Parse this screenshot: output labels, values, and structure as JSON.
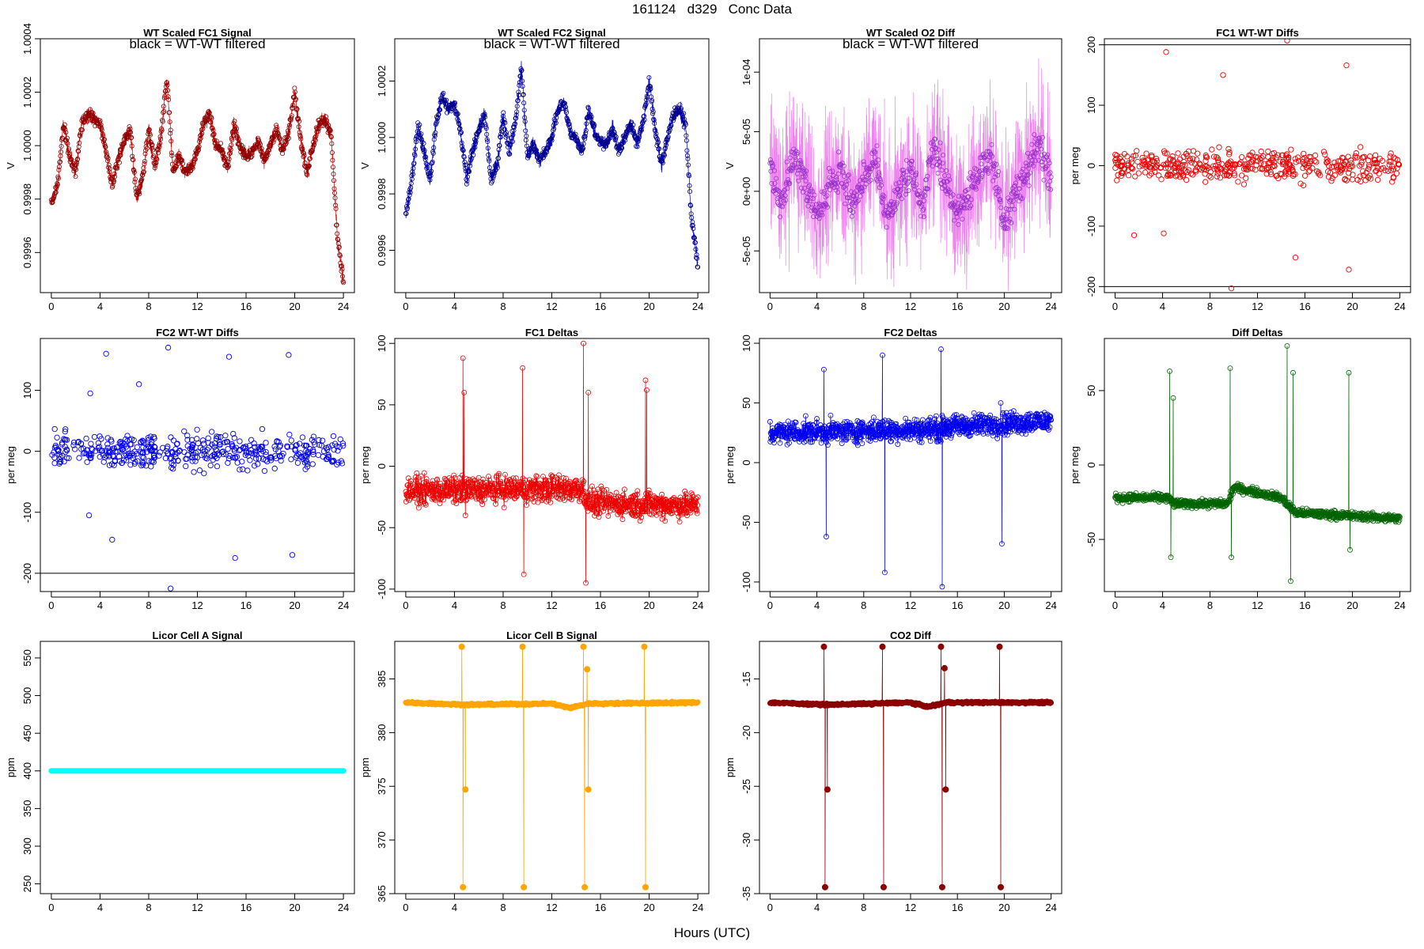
{
  "page": {
    "title": "161124   d329   Conc Data",
    "x_label": "Hours (UTC)"
  },
  "chart_data": [
    {
      "id": "fc1_signal",
      "type": "line",
      "title": "WT Scaled FC1 Signal",
      "annotation": "black = WT-WT filtered",
      "ylabel": "V",
      "xlim": [
        0,
        24
      ],
      "ylim": [
        0.99945,
        1.0004
      ],
      "xticks": [
        0,
        4,
        8,
        12,
        16,
        20,
        24
      ],
      "yticks": [
        0.9996,
        0.9998,
        1.0,
        1.0002,
        1.0004
      ],
      "ytick_labels": [
        "0.9996",
        "0.9998",
        "1.0000",
        "1.0002",
        "1.0004"
      ],
      "color": "#dd0000",
      "marker_color": "#8b0000",
      "series_points": [
        [
          0,
          0.99978
        ],
        [
          0.5,
          0.99985
        ],
        [
          1,
          1.00008
        ],
        [
          1.5,
          0.99996
        ],
        [
          2,
          0.9999
        ],
        [
          2.5,
          1.00008
        ],
        [
          3,
          1.00012
        ],
        [
          3.5,
          1.0001
        ],
        [
          4,
          1.00008
        ],
        [
          4.5,
          0.99998
        ],
        [
          5,
          0.99985
        ],
        [
          5.5,
          0.99995
        ],
        [
          6,
          1.00002
        ],
        [
          6.5,
          1.00006
        ],
        [
          7,
          0.9998
        ],
        [
          7.5,
          0.99988
        ],
        [
          8,
          1.00006
        ],
        [
          8.5,
          0.99992
        ],
        [
          9,
          1.00003
        ],
        [
          9.5,
          1.00025
        ],
        [
          10,
          0.9999
        ],
        [
          10.5,
          0.99996
        ],
        [
          11,
          0.9999
        ],
        [
          11.5,
          0.99992
        ],
        [
          12,
          0.99998
        ],
        [
          12.5,
          1.00008
        ],
        [
          13,
          1.00012
        ],
        [
          13.5,
          1.0
        ],
        [
          14,
          0.99998
        ],
        [
          14.5,
          0.99992
        ],
        [
          15,
          1.00008
        ],
        [
          15.5,
          1.0
        ],
        [
          16,
          0.99996
        ],
        [
          16.5,
          0.99998
        ],
        [
          17,
          1.00002
        ],
        [
          17.5,
          0.99994
        ],
        [
          18,
          1.0
        ],
        [
          18.5,
          1.00006
        ],
        [
          19,
          0.99998
        ],
        [
          19.5,
          1.00005
        ],
        [
          20,
          1.0002
        ],
        [
          20.5,
          1.00002
        ],
        [
          21,
          0.9999
        ],
        [
          21.5,
          1.0
        ],
        [
          22,
          1.00008
        ],
        [
          22.5,
          1.0001
        ],
        [
          23,
          1.00004
        ],
        [
          23.5,
          0.99965
        ],
        [
          24,
          0.9995
        ]
      ]
    },
    {
      "id": "fc2_signal",
      "type": "line",
      "title": "WT Scaled FC2 Signal",
      "annotation": "black = WT-WT filtered",
      "ylabel": "V",
      "xlim": [
        0,
        24
      ],
      "ylim": [
        0.99945,
        1.00035
      ],
      "xticks": [
        0,
        4,
        8,
        12,
        16,
        20,
        24
      ],
      "yticks": [
        0.9996,
        0.9998,
        1.0,
        1.0002
      ],
      "ytick_labels": [
        "0.9996",
        "0.9998",
        "1.0000",
        "1.0002"
      ],
      "color": "#0000dd",
      "marker_color": "#00008b",
      "series_points": [
        [
          0,
          0.99972
        ],
        [
          0.5,
          0.99985
        ],
        [
          1,
          1.00005
        ],
        [
          1.5,
          0.99995
        ],
        [
          2,
          0.99985
        ],
        [
          2.5,
          1.00005
        ],
        [
          3,
          1.00015
        ],
        [
          3.5,
          1.0001
        ],
        [
          4,
          1.00012
        ],
        [
          4.5,
          1.00002
        ],
        [
          5,
          0.99985
        ],
        [
          5.5,
          0.99995
        ],
        [
          6,
          1.00003
        ],
        [
          6.5,
          1.00008
        ],
        [
          7,
          0.99985
        ],
        [
          7.5,
          0.9999
        ],
        [
          8,
          1.00008
        ],
        [
          8.5,
          0.99995
        ],
        [
          9,
          1.00005
        ],
        [
          9.5,
          1.00025
        ],
        [
          10,
          0.99993
        ],
        [
          10.5,
          0.99998
        ],
        [
          11,
          0.99992
        ],
        [
          11.5,
          0.99995
        ],
        [
          12,
          1.0
        ],
        [
          12.5,
          1.0001
        ],
        [
          13,
          1.00012
        ],
        [
          13.5,
          1.00002
        ],
        [
          14,
          1.0
        ],
        [
          14.5,
          0.99995
        ],
        [
          15,
          1.0001
        ],
        [
          15.5,
          1.00002
        ],
        [
          16,
          0.99998
        ],
        [
          16.5,
          0.99998
        ],
        [
          17,
          1.00003
        ],
        [
          17.5,
          0.99995
        ],
        [
          18,
          1.0
        ],
        [
          18.5,
          1.00005
        ],
        [
          19,
          0.99998
        ],
        [
          19.5,
          1.00005
        ],
        [
          20,
          1.0002
        ],
        [
          20.5,
          1.00003
        ],
        [
          21,
          0.9999
        ],
        [
          21.5,
          1.0
        ],
        [
          22,
          1.00008
        ],
        [
          22.5,
          1.0001
        ],
        [
          23,
          1.00004
        ],
        [
          23.5,
          0.9997
        ],
        [
          24,
          0.99955
        ]
      ]
    },
    {
      "id": "o2_diff",
      "type": "line",
      "title": "WT Scaled O2 Diff",
      "annotation": "black = WT-WT filtered",
      "ylabel": "V",
      "xlim": [
        0,
        24
      ],
      "ylim": [
        -8.5e-05,
        0.000128
      ],
      "xticks": [
        0,
        4,
        8,
        12,
        16,
        20,
        24
      ],
      "yticks": [
        -5e-05,
        0,
        5e-05,
        0.0001
      ],
      "ytick_labels": [
        "-5e-05",
        "0e+00",
        "5e-05",
        "1e-04"
      ],
      "color": "#ee82ee",
      "marker_color": "#9932cc",
      "series_points": [
        [
          0,
          2e-05
        ],
        [
          1,
          -1e-05
        ],
        [
          2,
          3e-05
        ],
        [
          3,
          1e-05
        ],
        [
          4,
          -2e-05
        ],
        [
          5,
          0.0
        ],
        [
          6,
          2e-05
        ],
        [
          7,
          -1e-05
        ],
        [
          8,
          1e-05
        ],
        [
          9,
          3e-05
        ],
        [
          10,
          -2e-05
        ],
        [
          11,
          0.0
        ],
        [
          12,
          2e-05
        ],
        [
          13,
          -1e-05
        ],
        [
          14,
          4e-05
        ],
        [
          15,
          1e-05
        ],
        [
          16,
          -2e-05
        ],
        [
          17,
          0.0
        ],
        [
          18,
          2e-05
        ],
        [
          19,
          3e-05
        ],
        [
          20,
          -3e-05
        ],
        [
          21,
          0.0
        ],
        [
          22,
          2e-05
        ],
        [
          23,
          4e-05
        ],
        [
          24,
          1e-05
        ]
      ]
    },
    {
      "id": "fc1_wtwt",
      "type": "scatter",
      "title": "FC1 WT-WT Diffs",
      "ylabel": "per meg",
      "xlim": [
        0,
        24
      ],
      "ylim": [
        -210,
        210
      ],
      "xticks": [
        0,
        4,
        8,
        12,
        16,
        20,
        24
      ],
      "yticks": [
        -200,
        -100,
        0,
        100,
        200
      ],
      "ytick_labels": [
        "-200",
        "-100",
        "0",
        "100",
        "200"
      ],
      "hlines": [
        200,
        -200
      ],
      "color": "#ee0000",
      "outliers": [
        [
          4.3,
          188
        ],
        [
          14.5,
          207
        ],
        [
          19.5,
          166
        ],
        [
          9.1,
          150
        ],
        [
          1.6,
          -115
        ],
        [
          4.1,
          -112
        ],
        [
          15.2,
          -152
        ],
        [
          19.7,
          -172
        ],
        [
          9.8,
          -203
        ]
      ]
    },
    {
      "id": "fc2_wtwt",
      "type": "scatter",
      "title": "FC2 WT-WT Diffs",
      "ylabel": "per meg",
      "xlim": [
        0,
        24
      ],
      "ylim": [
        -230,
        185
      ],
      "xticks": [
        0,
        4,
        8,
        12,
        16,
        20,
        24
      ],
      "yticks": [
        -200,
        -100,
        0,
        100
      ],
      "ytick_labels": [
        "-200",
        "-100",
        "0",
        "100"
      ],
      "hlines": [
        -200
      ],
      "color": "#0000ee",
      "outliers": [
        [
          4.5,
          160
        ],
        [
          9.6,
          170
        ],
        [
          14.6,
          155
        ],
        [
          19.5,
          158
        ],
        [
          3.2,
          95
        ],
        [
          7.2,
          110
        ],
        [
          3.1,
          -105
        ],
        [
          5.0,
          -145
        ],
        [
          15.1,
          -175
        ],
        [
          19.8,
          -170
        ],
        [
          9.8,
          -225
        ]
      ]
    },
    {
      "id": "fc1_deltas",
      "type": "line",
      "title": "FC1 Deltas",
      "ylabel": "per meg",
      "xlim": [
        0,
        24
      ],
      "ylim": [
        -102,
        104
      ],
      "xticks": [
        0,
        4,
        8,
        12,
        16,
        20,
        24
      ],
      "yticks": [
        -100,
        -50,
        0,
        50,
        100
      ],
      "ytick_labels": [
        "-100",
        "-50",
        "0",
        "50",
        "100"
      ],
      "color": "#ee0000",
      "baseline": [
        [
          0,
          -20
        ],
        [
          14.5,
          -18
        ],
        [
          15,
          -30
        ],
        [
          24,
          -32
        ]
      ],
      "spikes": [
        [
          4.7,
          88
        ],
        [
          4.8,
          60
        ],
        [
          4.9,
          -40
        ],
        [
          9.6,
          80
        ],
        [
          9.7,
          -88
        ],
        [
          14.6,
          100
        ],
        [
          14.8,
          -95
        ],
        [
          15.0,
          60
        ],
        [
          19.7,
          70
        ],
        [
          19.8,
          62
        ]
      ]
    },
    {
      "id": "fc2_deltas",
      "type": "line",
      "title": "FC2 Deltas",
      "ylabel": "per meg",
      "xlim": [
        0,
        24
      ],
      "ylim": [
        -108,
        104
      ],
      "xticks": [
        0,
        4,
        8,
        12,
        16,
        20,
        24
      ],
      "yticks": [
        -100,
        -50,
        0,
        50,
        100
      ],
      "ytick_labels": [
        "-100",
        "-50",
        "0",
        "50",
        "100"
      ],
      "color": "#0000ee",
      "baseline": [
        [
          0,
          25
        ],
        [
          14.5,
          28
        ],
        [
          15,
          30
        ],
        [
          24,
          35
        ]
      ],
      "spikes": [
        [
          4.6,
          78
        ],
        [
          4.8,
          -62
        ],
        [
          9.6,
          90
        ],
        [
          9.8,
          -92
        ],
        [
          14.6,
          95
        ],
        [
          14.7,
          -104
        ],
        [
          19.7,
          50
        ],
        [
          19.8,
          -68
        ]
      ]
    },
    {
      "id": "diff_deltas",
      "type": "line",
      "title": "Diff Deltas",
      "ylabel": "per meg",
      "xlim": [
        0,
        24
      ],
      "ylim": [
        -85,
        85
      ],
      "xticks": [
        0,
        4,
        8,
        12,
        16,
        20,
        24
      ],
      "yticks": [
        -50,
        0,
        50
      ],
      "ytick_labels": [
        "-50",
        "0",
        "50"
      ],
      "color": "#006400",
      "baseline": [
        [
          0,
          -22
        ],
        [
          4.4,
          -22
        ],
        [
          5,
          -26
        ],
        [
          9.5,
          -26
        ],
        [
          10,
          -15
        ],
        [
          14,
          -22
        ],
        [
          15.2,
          -32
        ],
        [
          24,
          -36
        ]
      ],
      "spikes": [
        [
          4.6,
          63
        ],
        [
          4.7,
          -62
        ],
        [
          4.9,
          45
        ],
        [
          9.7,
          65
        ],
        [
          9.8,
          -62
        ],
        [
          14.5,
          80
        ],
        [
          14.8,
          -78
        ],
        [
          15.0,
          62
        ],
        [
          19.7,
          62
        ],
        [
          19.8,
          -57
        ]
      ]
    },
    {
      "id": "licor_a",
      "type": "line",
      "title": "Licor Cell A Signal",
      "ylabel": "ppm",
      "xlim": [
        0,
        24
      ],
      "ylim": [
        237,
        572
      ],
      "xticks": [
        0,
        4,
        8,
        12,
        16,
        20,
        24
      ],
      "yticks": [
        250,
        300,
        350,
        400,
        450,
        500,
        550
      ],
      "ytick_labels": [
        "250",
        "300",
        "350",
        "400",
        "450",
        "500",
        "550"
      ],
      "color": "#00ffff",
      "constant": 400
    },
    {
      "id": "licor_b",
      "type": "line",
      "title": "Licor Cell B Signal",
      "ylabel": "ppm",
      "xlim": [
        0,
        24
      ],
      "ylim": [
        365,
        388.5
      ],
      "xticks": [
        0,
        4,
        8,
        12,
        16,
        20,
        24
      ],
      "yticks": [
        365,
        370,
        375,
        380,
        385
      ],
      "ytick_labels": [
        "365",
        "370",
        "375",
        "380",
        "385"
      ],
      "color": "#ffa500",
      "baseline": [
        [
          0,
          382.8
        ],
        [
          5,
          382.6
        ],
        [
          12,
          382.7
        ],
        [
          13.5,
          382.3
        ],
        [
          15,
          382.7
        ],
        [
          24,
          382.8
        ]
      ],
      "spikes": [
        [
          4.6,
          388
        ],
        [
          4.7,
          365.6
        ],
        [
          4.9,
          374.7
        ],
        [
          9.6,
          388
        ],
        [
          9.7,
          365.6
        ],
        [
          14.6,
          388
        ],
        [
          14.7,
          365.6
        ],
        [
          14.9,
          385.9
        ],
        [
          15.0,
          374.7
        ],
        [
          19.6,
          388
        ],
        [
          19.7,
          365.6
        ]
      ]
    },
    {
      "id": "co2_diff",
      "type": "line",
      "title": "CO2 Diff",
      "ylabel": "ppm",
      "xlim": [
        0,
        24
      ],
      "ylim": [
        -35,
        -11.5
      ],
      "xticks": [
        0,
        4,
        8,
        12,
        16,
        20,
        24
      ],
      "yticks": [
        -35,
        -30,
        -25,
        -20,
        -15
      ],
      "ytick_labels": [
        "-35",
        "-30",
        "-25",
        "-20",
        "-15"
      ],
      "color": "#8b0000",
      "baseline": [
        [
          0,
          -17.2
        ],
        [
          5,
          -17.4
        ],
        [
          12,
          -17.2
        ],
        [
          13.5,
          -17.6
        ],
        [
          15,
          -17.2
        ],
        [
          24,
          -17.2
        ]
      ],
      "spikes": [
        [
          4.6,
          -12
        ],
        [
          4.7,
          -34.4
        ],
        [
          4.9,
          -25.3
        ],
        [
          9.6,
          -12
        ],
        [
          9.7,
          -34.4
        ],
        [
          14.6,
          -12
        ],
        [
          14.7,
          -34.4
        ],
        [
          14.9,
          -14
        ],
        [
          15.0,
          -25.3
        ],
        [
          19.6,
          -12
        ],
        [
          19.7,
          -34.4
        ]
      ]
    }
  ]
}
